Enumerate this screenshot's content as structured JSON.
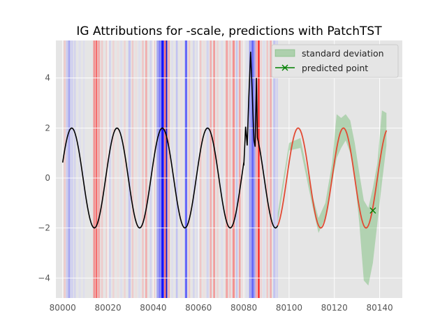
{
  "chart_data": {
    "type": "line",
    "title": "IG Attributions for -scale, predictions with PatchTST",
    "xlabel": "",
    "ylabel": "",
    "xlim": [
      79997,
      80150
    ],
    "ylim": [
      -4.8,
      5.5
    ],
    "xticks": [
      80000,
      80020,
      80040,
      80060,
      80080,
      80100,
      80120,
      80140
    ],
    "yticks": [
      -4,
      -2,
      0,
      2,
      4
    ],
    "grid": true,
    "legend": {
      "position": "top-right",
      "entries": [
        {
          "label": "standard deviation",
          "kind": "patch",
          "color": "#2ca02c"
        },
        {
          "label": "predicted point",
          "kind": "line-marker",
          "color": "#008000"
        }
      ]
    },
    "series": [
      {
        "role": "history",
        "color": "#000000",
        "x_start": 80000,
        "x_end": 80095,
        "period": 20,
        "amplitude": 2,
        "offset_x": 80004
      },
      {
        "role": "forecast",
        "color": "#e24a33",
        "x_start": 80095,
        "x_end": 80143,
        "period": 20,
        "amplitude": 2,
        "offset_x": 80104
      },
      {
        "role": "predicted-point",
        "color": "#008000",
        "marker": "x",
        "x": 80137,
        "y": -1.3
      }
    ],
    "history_anomaly": {
      "x": [
        80080,
        80080.8,
        80081.5,
        80082.2,
        80083,
        80083.8,
        80084.5,
        80085,
        80085.6
      ],
      "y": [
        0.5,
        2.05,
        1.3,
        3.2,
        5.05,
        3.2,
        1.5,
        1.25,
        4.0
      ]
    },
    "std_band": {
      "color": "#2ca02c",
      "x": [
        80095,
        80100,
        80105,
        80110,
        80113,
        80116,
        80119,
        80121,
        80123,
        80125,
        80127,
        80129,
        80131,
        80133,
        80135,
        80137,
        80139,
        80141,
        80143
      ],
      "upper": [
        -1.4,
        1.4,
        1.6,
        -0.6,
        -1.6,
        -1.0,
        0.6,
        2.55,
        2.4,
        2.55,
        2.3,
        1.4,
        0.2,
        -0.9,
        -1.2,
        -0.4,
        0.6,
        2.7,
        2.6
      ],
      "lower": [
        -1.8,
        1.1,
        1.2,
        -1.0,
        -2.2,
        -1.6,
        -0.2,
        0.8,
        1.2,
        1.5,
        1.0,
        0.0,
        -1.8,
        -4.1,
        -4.3,
        -3.4,
        -1.8,
        -0.2,
        1.3
      ]
    },
    "attribution_bands": [
      {
        "x": 80000.5,
        "w": 0.8,
        "color": "#ff9999",
        "alpha": 0.35
      },
      {
        "x": 80001.5,
        "w": 1.0,
        "color": "#9999ff",
        "alpha": 0.35
      },
      {
        "x": 80002.5,
        "w": 0.8,
        "color": "#6666ff",
        "alpha": 0.5
      },
      {
        "x": 80003.5,
        "w": 1.2,
        "color": "#b3b3ff",
        "alpha": 0.4
      },
      {
        "x": 80005,
        "w": 0.8,
        "color": "#b3b3ff",
        "alpha": 0.35
      },
      {
        "x": 80007,
        "w": 1.0,
        "color": "#ccccff",
        "alpha": 0.3
      },
      {
        "x": 80009,
        "w": 0.8,
        "color": "#ccccff",
        "alpha": 0.3
      },
      {
        "x": 80013.5,
        "w": 0.8,
        "color": "#ff4d4d",
        "alpha": 0.55
      },
      {
        "x": 80014.5,
        "w": 0.8,
        "color": "#ff1a1a",
        "alpha": 0.6
      },
      {
        "x": 80015.5,
        "w": 1.0,
        "color": "#ff6666",
        "alpha": 0.45
      },
      {
        "x": 80017,
        "w": 0.8,
        "color": "#ff9999",
        "alpha": 0.35
      },
      {
        "x": 80019,
        "w": 0.8,
        "color": "#ffb3b3",
        "alpha": 0.35
      },
      {
        "x": 80020.5,
        "w": 0.8,
        "color": "#b3b3ff",
        "alpha": 0.35
      },
      {
        "x": 80022,
        "w": 0.8,
        "color": "#ffb3b3",
        "alpha": 0.35
      },
      {
        "x": 80024,
        "w": 0.8,
        "color": "#ffcccc",
        "alpha": 0.3
      },
      {
        "x": 80025.5,
        "w": 0.8,
        "color": "#ccccff",
        "alpha": 0.3
      },
      {
        "x": 80027,
        "w": 0.8,
        "color": "#ffb3b3",
        "alpha": 0.35
      },
      {
        "x": 80029,
        "w": 1.0,
        "color": "#9999ff",
        "alpha": 0.45
      },
      {
        "x": 80030.5,
        "w": 0.8,
        "color": "#ff9999",
        "alpha": 0.35
      },
      {
        "x": 80032,
        "w": 0.8,
        "color": "#ffcccc",
        "alpha": 0.3
      },
      {
        "x": 80033.5,
        "w": 0.8,
        "color": "#ccccff",
        "alpha": 0.3
      },
      {
        "x": 80035,
        "w": 0.8,
        "color": "#ff9999",
        "alpha": 0.4
      },
      {
        "x": 80036.5,
        "w": 0.8,
        "color": "#ff6666",
        "alpha": 0.45
      },
      {
        "x": 80038.5,
        "w": 0.8,
        "color": "#b3b3ff",
        "alpha": 0.35
      },
      {
        "x": 80040,
        "w": 0.8,
        "color": "#ffb3b3",
        "alpha": 0.35
      },
      {
        "x": 80041.5,
        "w": 1.0,
        "color": "#6666ff",
        "alpha": 0.5
      },
      {
        "x": 80042.5,
        "w": 0.8,
        "color": "#3333ff",
        "alpha": 0.6
      },
      {
        "x": 80043.5,
        "w": 1.2,
        "color": "#0000ff",
        "alpha": 0.9
      },
      {
        "x": 80044.8,
        "w": 0.8,
        "color": "#ff3333",
        "alpha": 0.6
      },
      {
        "x": 80045.6,
        "w": 0.6,
        "color": "#0000cc",
        "alpha": 0.9
      },
      {
        "x": 80046.5,
        "w": 0.8,
        "color": "#ff6666",
        "alpha": 0.45
      },
      {
        "x": 80048,
        "w": 0.8,
        "color": "#ccccff",
        "alpha": 0.3
      },
      {
        "x": 80050,
        "w": 0.8,
        "color": "#9999ff",
        "alpha": 0.45
      },
      {
        "x": 80052,
        "w": 0.8,
        "color": "#ffcccc",
        "alpha": 0.3
      },
      {
        "x": 80054,
        "w": 1.0,
        "color": "#3333ff",
        "alpha": 0.7
      },
      {
        "x": 80055.5,
        "w": 0.8,
        "color": "#ff9999",
        "alpha": 0.35
      },
      {
        "x": 80057.5,
        "w": 0.8,
        "color": "#b3b3ff",
        "alpha": 0.35
      },
      {
        "x": 80059,
        "w": 0.8,
        "color": "#ccccff",
        "alpha": 0.3
      },
      {
        "x": 80060.5,
        "w": 0.8,
        "color": "#ff9999",
        "alpha": 0.4
      },
      {
        "x": 80062,
        "w": 0.8,
        "color": "#ffcccc",
        "alpha": 0.3
      },
      {
        "x": 80063.5,
        "w": 1.0,
        "color": "#b3b3ff",
        "alpha": 0.35
      },
      {
        "x": 80065,
        "w": 0.8,
        "color": "#ff6666",
        "alpha": 0.45
      },
      {
        "x": 80066.5,
        "w": 0.8,
        "color": "#ff4d4d",
        "alpha": 0.5
      },
      {
        "x": 80068,
        "w": 0.8,
        "color": "#ffb3b3",
        "alpha": 0.35
      },
      {
        "x": 80070,
        "w": 0.8,
        "color": "#ccccff",
        "alpha": 0.3
      },
      {
        "x": 80072,
        "w": 1.0,
        "color": "#ff6666",
        "alpha": 0.5
      },
      {
        "x": 80073.5,
        "w": 0.8,
        "color": "#ff9999",
        "alpha": 0.4
      },
      {
        "x": 80075,
        "w": 1.0,
        "color": "#ff4d4d",
        "alpha": 0.55
      },
      {
        "x": 80076.5,
        "w": 0.8,
        "color": "#9999ff",
        "alpha": 0.4
      },
      {
        "x": 80077.8,
        "w": 0.8,
        "color": "#ff6666",
        "alpha": 0.5
      },
      {
        "x": 80079,
        "w": 0.8,
        "color": "#ffcccc",
        "alpha": 0.3
      },
      {
        "x": 80081,
        "w": 0.8,
        "color": "#ccccff",
        "alpha": 0.3
      },
      {
        "x": 80082.3,
        "w": 1.0,
        "color": "#6666ff",
        "alpha": 0.55
      },
      {
        "x": 80083.4,
        "w": 0.9,
        "color": "#3333ff",
        "alpha": 0.7
      },
      {
        "x": 80084.3,
        "w": 0.8,
        "color": "#6666ff",
        "alpha": 0.55
      },
      {
        "x": 80085.2,
        "w": 0.8,
        "color": "#ff6666",
        "alpha": 0.45
      },
      {
        "x": 80086.2,
        "w": 0.8,
        "color": "#ff1a1a",
        "alpha": 0.9
      },
      {
        "x": 80087.2,
        "w": 0.8,
        "color": "#ffb3b3",
        "alpha": 0.35
      },
      {
        "x": 80088.5,
        "w": 0.8,
        "color": "#ccccff",
        "alpha": 0.3
      },
      {
        "x": 80090,
        "w": 0.8,
        "color": "#ff9999",
        "alpha": 0.4
      },
      {
        "x": 80091.5,
        "w": 0.8,
        "color": "#ff6666",
        "alpha": 0.45
      },
      {
        "x": 80093,
        "w": 1.0,
        "color": "#9999ff",
        "alpha": 0.45
      },
      {
        "x": 80094.3,
        "w": 0.8,
        "color": "#b3b3ff",
        "alpha": 0.4
      }
    ]
  }
}
